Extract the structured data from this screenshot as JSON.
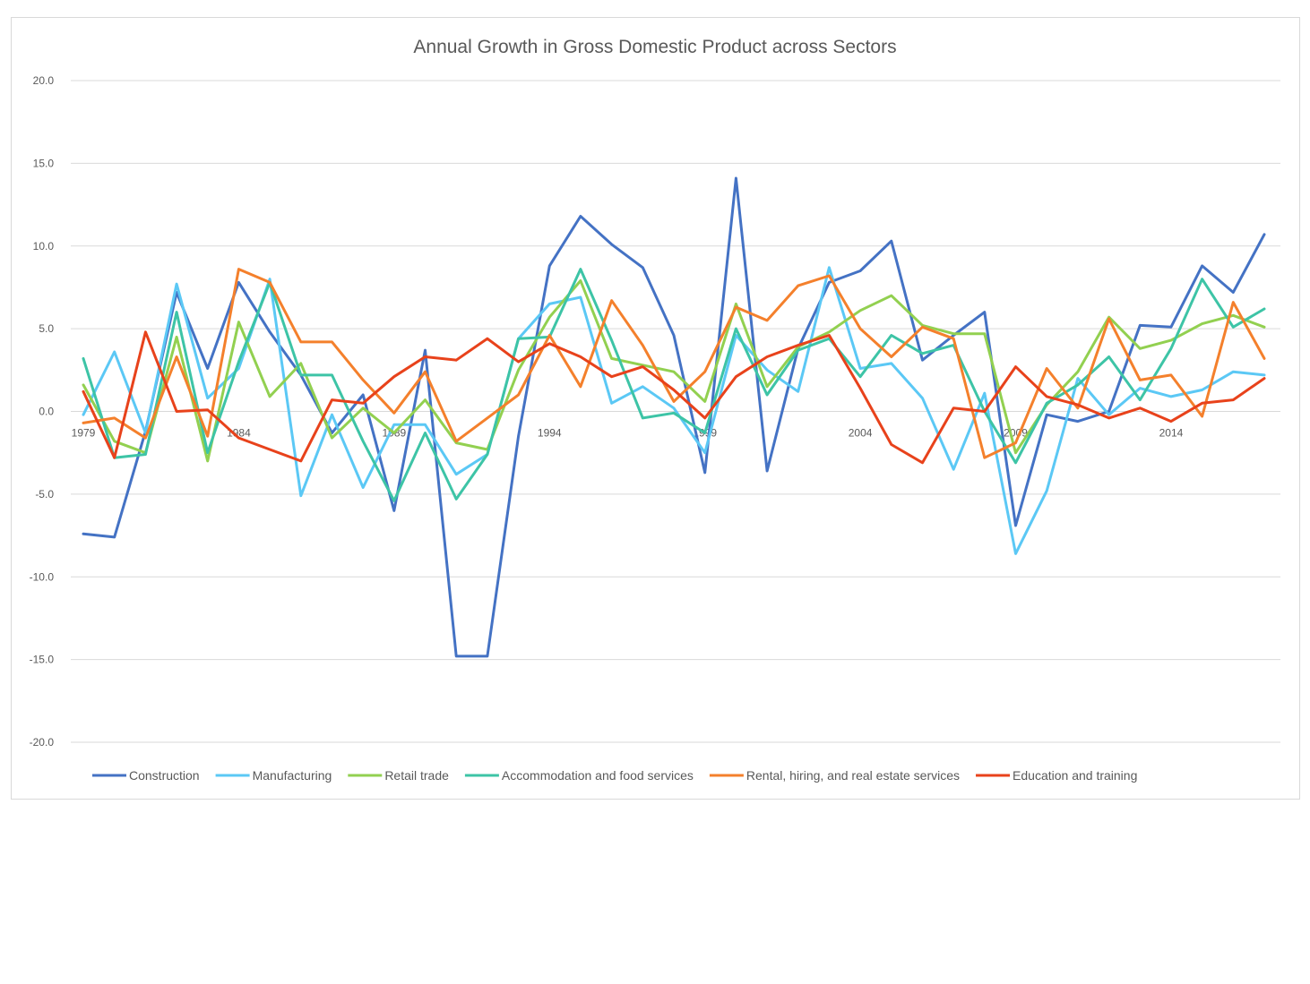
{
  "chart_data": {
    "type": "line",
    "title": "Annual Growth in Gross Domestic Product across Sectors",
    "xlabel": "",
    "ylabel": "",
    "x": [
      1979,
      1980,
      1981,
      1982,
      1983,
      1984,
      1985,
      1986,
      1987,
      1988,
      1989,
      1990,
      1991,
      1992,
      1993,
      1994,
      1995,
      1996,
      1997,
      1998,
      1999,
      2000,
      2001,
      2002,
      2003,
      2004,
      2005,
      2006,
      2007,
      2008,
      2009,
      2010,
      2011,
      2012,
      2013,
      2014,
      2015,
      2016,
      2017
    ],
    "x_tick_labels": [
      "1979",
      "1984",
      "1989",
      "1994",
      "1999",
      "2004",
      "2009",
      "2014"
    ],
    "x_tick_values": [
      1979,
      1984,
      1989,
      1994,
      1999,
      2004,
      2009,
      2014
    ],
    "ylim": [
      -20,
      20
    ],
    "y_ticks": [
      20,
      15,
      10,
      5,
      0,
      -5,
      -10,
      -15,
      -20
    ],
    "y_tick_labels": [
      "20.0",
      "15.0",
      "10.0",
      "5.0",
      "0.0",
      "-5.0",
      "-10.0",
      "-15.0",
      "-20.0"
    ],
    "grid": true,
    "legend_position": "bottom",
    "series": [
      {
        "name": "Construction",
        "color": "#4472C4",
        "values": [
          -7.4,
          -7.6,
          -1.2,
          7.2,
          2.6,
          7.8,
          4.8,
          2.2,
          -1.3,
          1.0,
          -6.0,
          3.7,
          -14.8,
          -14.8,
          -1.5,
          8.8,
          11.8,
          10.1,
          8.7,
          4.6,
          -3.7,
          14.1,
          -3.6,
          3.8,
          7.8,
          8.5,
          10.3,
          3.1,
          4.6,
          6.0,
          -6.9,
          -0.2,
          -0.6,
          0.0,
          5.2,
          5.1,
          8.8,
          7.2,
          10.7
        ]
      },
      {
        "name": "Manufacturing",
        "color": "#5BC8F5",
        "values": [
          -0.2,
          3.6,
          -1.3,
          7.7,
          0.8,
          2.6,
          8.0,
          -5.1,
          -0.2,
          -4.6,
          -0.8,
          -0.8,
          -3.8,
          -2.6,
          4.4,
          6.5,
          6.9,
          0.5,
          1.5,
          0.2,
          -2.5,
          4.6,
          2.5,
          1.2,
          8.7,
          2.6,
          2.9,
          0.8,
          -3.5,
          1.1,
          -8.6,
          -4.8,
          2.0,
          -0.2,
          1.4,
          0.9,
          1.3,
          2.4,
          2.2
        ]
      },
      {
        "name": "Retail trade",
        "color": "#92D050",
        "values": [
          1.6,
          -1.8,
          -2.5,
          4.5,
          -3.0,
          5.4,
          0.9,
          2.9,
          -1.6,
          0.2,
          -1.3,
          0.7,
          -1.9,
          -2.3,
          2.5,
          5.7,
          7.9,
          3.2,
          2.8,
          2.4,
          0.6,
          6.5,
          1.5,
          3.9,
          4.8,
          6.1,
          7.0,
          5.2,
          4.7,
          4.7,
          -2.5,
          0.4,
          2.4,
          5.7,
          3.8,
          4.3,
          5.3,
          5.8,
          5.1
        ]
      },
      {
        "name": "Accommodation and food services",
        "color": "#3DC4A6",
        "values": [
          3.2,
          -2.8,
          -2.6,
          6.0,
          -2.5,
          3.0,
          7.8,
          2.2,
          2.2,
          -1.8,
          -5.4,
          -1.3,
          -5.3,
          -2.6,
          4.4,
          4.5,
          8.6,
          4.3,
          -0.4,
          -0.1,
          -1.3,
          5.0,
          1.0,
          3.7,
          4.4,
          2.1,
          4.6,
          3.5,
          4.0,
          0.0,
          -3.1,
          0.5,
          1.6,
          3.3,
          0.7,
          3.8,
          8.0,
          5.1,
          6.2
        ]
      },
      {
        "name": "Rental, hiring, and real estate services",
        "color": "#F4802C",
        "values": [
          -0.7,
          -0.4,
          -1.6,
          3.3,
          -1.5,
          8.6,
          7.8,
          4.2,
          4.2,
          1.9,
          -0.1,
          2.4,
          -1.8,
          -0.4,
          1.0,
          4.6,
          1.5,
          6.7,
          4.0,
          0.6,
          2.4,
          6.3,
          5.5,
          7.6,
          8.2,
          5.0,
          3.3,
          5.1,
          4.4,
          -2.8,
          -1.9,
          2.6,
          0.2,
          5.6,
          1.9,
          2.2,
          -0.3,
          6.6,
          3.2
        ]
      },
      {
        "name": "Education and training",
        "color": "#E8421B",
        "values": [
          1.2,
          -2.8,
          4.8,
          0.0,
          0.1,
          -1.6,
          -2.3,
          -3.0,
          0.7,
          0.5,
          2.1,
          3.3,
          3.1,
          4.4,
          3.0,
          4.1,
          3.3,
          2.1,
          2.7,
          1.3,
          -0.4,
          2.1,
          3.3,
          4.0,
          4.6,
          1.4,
          -2.0,
          -3.1,
          0.2,
          0.0,
          2.7,
          0.9,
          0.4,
          -0.4,
          0.2,
          -0.6,
          0.5,
          0.7,
          2.0
        ]
      }
    ]
  }
}
